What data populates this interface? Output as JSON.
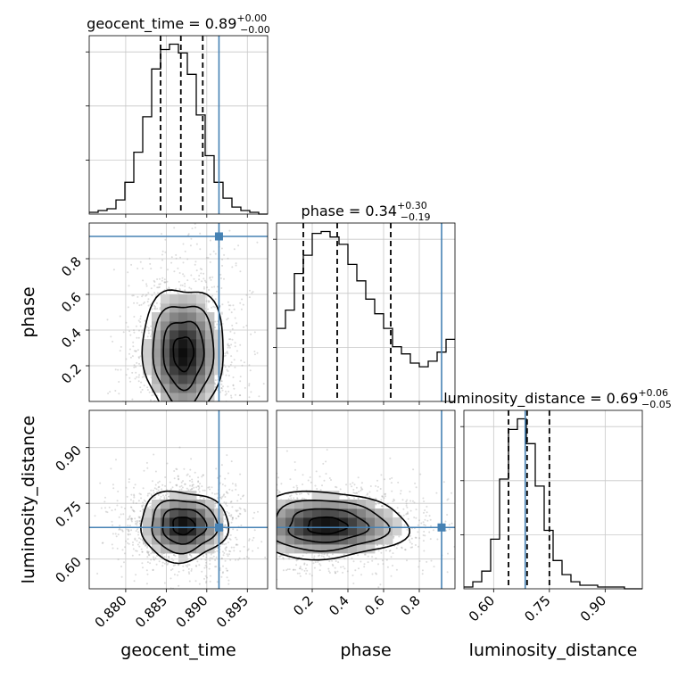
{
  "chart_data": {
    "type": "corner",
    "parameters": [
      "geocent_time",
      "phase",
      "luminosity_distance"
    ],
    "truths": [
      0.8915,
      0.925,
      0.685
    ],
    "truth_color": "#4682b4",
    "ranges": {
      "geocent_time": [
        0.8755,
        0.8975
      ],
      "phase": [
        0.0,
        1.0
      ],
      "luminosity_distance": [
        0.52,
        1.0
      ]
    },
    "titles": [
      {
        "param": "geocent_time",
        "label": "geocent_time = 0.89",
        "sup": "+0.00",
        "sub": "−0.00"
      },
      {
        "param": "phase",
        "label": "phase = 0.34",
        "sup": "+0.30",
        "sub": "−0.19"
      },
      {
        "param": "luminosity_distance",
        "label": "luminosity_distance = 0.69",
        "sup": "+0.06",
        "sub": "−0.05"
      }
    ],
    "axis_labels": {
      "bottom": [
        "geocent_time",
        "phase",
        "luminosity_distance"
      ],
      "left": [
        "phase",
        "luminosity_distance"
      ]
    },
    "ticks": {
      "geocent_time": {
        "values": [
          0.88,
          0.885,
          0.89,
          0.895
        ],
        "labels": [
          "0.880",
          "0.885",
          "0.890",
          "0.895"
        ]
      },
      "phase": {
        "values": [
          0.2,
          0.4,
          0.6,
          0.8
        ],
        "labels": [
          "0.2",
          "0.4",
          "0.6",
          "0.8"
        ]
      },
      "luminosity_distance": {
        "values": [
          0.6,
          0.75,
          0.9
        ],
        "labels": [
          "0.60",
          "0.75",
          "0.90"
        ]
      }
    },
    "histograms": {
      "geocent_time": {
        "bin_edges": [
          0.8755,
          0.8766,
          0.8777,
          0.8788,
          0.8799,
          0.881,
          0.8821,
          0.8832,
          0.8843,
          0.8854,
          0.8865,
          0.8876,
          0.8887,
          0.8898,
          0.8909,
          0.892,
          0.8931,
          0.8942,
          0.8953,
          0.8964,
          0.8975
        ],
        "counts": [
          1,
          2,
          3,
          8,
          18,
          35,
          55,
          82,
          93,
          96,
          91,
          79,
          56,
          33,
          18,
          9,
          4,
          2,
          1,
          0
        ],
        "quantiles": [
          0.8843,
          0.8868,
          0.8895
        ]
      },
      "phase": {
        "bin_edges": [
          0,
          0.05,
          0.1,
          0.15,
          0.2,
          0.25,
          0.3,
          0.35,
          0.4,
          0.45,
          0.5,
          0.55,
          0.6,
          0.65,
          0.7,
          0.75,
          0.8,
          0.85,
          0.9,
          0.95,
          1.0
        ],
        "counts": [
          40,
          50,
          70,
          80,
          92,
          93,
          90,
          86,
          75,
          66,
          56,
          48,
          40,
          30,
          26,
          21,
          19,
          22,
          27,
          34
        ],
        "quantiles": [
          0.15,
          0.34,
          0.64
        ]
      },
      "luminosity_distance": {
        "bin_edges": [
          0.52,
          0.544,
          0.568,
          0.592,
          0.616,
          0.64,
          0.664,
          0.688,
          0.712,
          0.736,
          0.76,
          0.784,
          0.808,
          0.832,
          0.856,
          0.88,
          0.904,
          0.928,
          0.952,
          0.976,
          1.0
        ],
        "counts": [
          1,
          4,
          10,
          28,
          62,
          90,
          96,
          82,
          58,
          33,
          16,
          8,
          4,
          2,
          2,
          1,
          1,
          1,
          0,
          0
        ],
        "quantiles": [
          0.64,
          0.69,
          0.75
        ]
      }
    },
    "joint": [
      {
        "x": "geocent_time",
        "y": "phase",
        "center": [
          0.8871,
          0.27
        ],
        "sd": [
          0.0025,
          0.19
        ]
      },
      {
        "x": "geocent_time",
        "y": "luminosity_distance",
        "center": [
          0.8871,
          0.69
        ],
        "sd": [
          0.0027,
          0.047
        ]
      },
      {
        "x": "phase",
        "y": "luminosity_distance",
        "center": [
          0.28,
          0.69
        ],
        "sd": [
          0.22,
          0.045
        ]
      }
    ]
  }
}
